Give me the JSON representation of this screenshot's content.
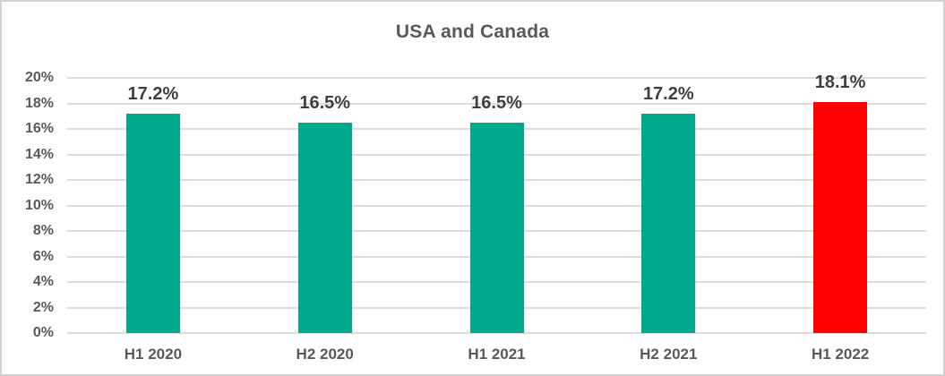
{
  "chart_data": {
    "type": "bar",
    "title": "USA and Canada",
    "categories": [
      "H1 2020",
      "H2 2020",
      "H1 2021",
      "H2 2021",
      "H1 2022"
    ],
    "values": [
      17.2,
      16.5,
      16.5,
      17.2,
      18.1
    ],
    "data_labels": [
      "17.2%",
      "16.5%",
      "16.5%",
      "17.2%",
      "18.1%"
    ],
    "bar_colors": [
      "#00a88c",
      "#00a88c",
      "#00a88c",
      "#00a88c",
      "#ff0000"
    ],
    "xlabel": "",
    "ylabel": "",
    "ylim": [
      0,
      20
    ],
    "ytick_step": 2,
    "ytick_labels": [
      "0%",
      "2%",
      "4%",
      "6%",
      "8%",
      "10%",
      "12%",
      "14%",
      "16%",
      "18%",
      "20%"
    ],
    "grid": true,
    "legend": false,
    "colors": {
      "title_text": "#595959",
      "axis_text": "#595959",
      "data_label_text": "#3f3f3f",
      "gridline": "#dcdcdc",
      "frame_border": "#d2d2d2",
      "background": "#ffffff"
    }
  }
}
